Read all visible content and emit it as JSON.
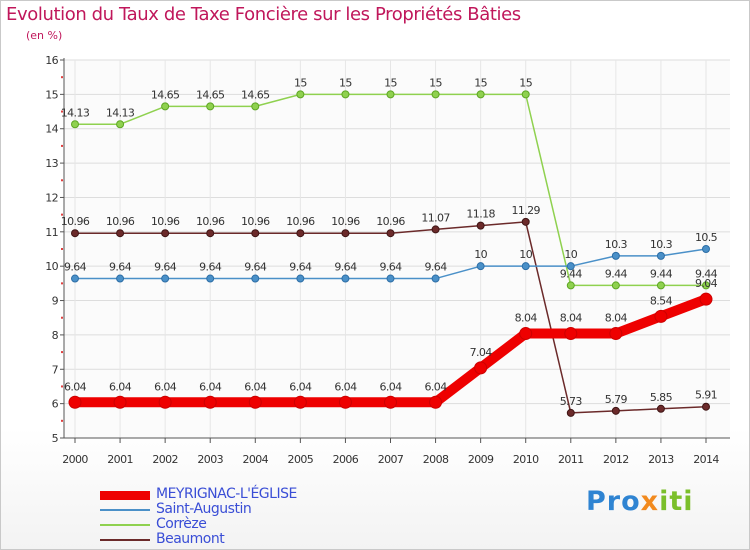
{
  "title": "Evolution du Taux de Taxe Foncière sur les Propriétés Bâties",
  "unit_label": "(en %)",
  "brand": {
    "part1": "Pro",
    "part2": "x",
    "part3": "iti"
  },
  "chart_data": {
    "type": "line",
    "title": "Evolution du Taux de Taxe Foncière sur les Propriétés Bâties",
    "ylabel": "(en %)",
    "xlabel": "",
    "ylim": [
      5,
      16
    ],
    "yticks": [
      5,
      6,
      7,
      8,
      9,
      10,
      11,
      12,
      13,
      14,
      15,
      16
    ],
    "categories": [
      "2000",
      "2001",
      "2002",
      "2003",
      "2004",
      "2005",
      "2006",
      "2007",
      "2008",
      "2009",
      "2010",
      "2011",
      "2012",
      "2013",
      "2014"
    ],
    "series": [
      {
        "name": "MEYRIGNAC-L'ÉGLISE",
        "color": "#ee0000",
        "values": [
          6.04,
          6.04,
          6.04,
          6.04,
          6.04,
          6.04,
          6.04,
          6.04,
          6.04,
          7.04,
          8.04,
          8.04,
          8.04,
          8.54,
          9.04
        ],
        "labels": [
          "6.04",
          "6.04",
          "6.04",
          "6.04",
          "6.04",
          "6.04",
          "6.04",
          "6.04",
          "6.04",
          "7.04",
          "8.04",
          "8.04",
          "8.04",
          "8.54",
          "9.04"
        ]
      },
      {
        "name": "Saint-Augustin",
        "color": "#4a90c8",
        "values": [
          9.64,
          9.64,
          9.64,
          9.64,
          9.64,
          9.64,
          9.64,
          9.64,
          9.64,
          10,
          10,
          10,
          10.3,
          10.3,
          10.5
        ],
        "labels": [
          "9.64",
          "9.64",
          "9.64",
          "9.64",
          "9.64",
          "9.64",
          "9.64",
          "9.64",
          "9.64",
          "10",
          "10",
          "10",
          "10.3",
          "10.3",
          "10.5"
        ]
      },
      {
        "name": "Corrèze",
        "color": "#8fd14f",
        "values": [
          14.13,
          14.13,
          14.65,
          14.65,
          14.65,
          15,
          15,
          15,
          15,
          15,
          15,
          9.44,
          9.44,
          9.44,
          9.44
        ],
        "labels": [
          "14.13",
          "14.13",
          "14.65",
          "14.65",
          "14.65",
          "15",
          "15",
          "15",
          "15",
          "15",
          "15",
          "9.44",
          "9.44",
          "9.44",
          "9.44"
        ]
      },
      {
        "name": "Beaumont",
        "color": "#6b2a2a",
        "values": [
          10.96,
          10.96,
          10.96,
          10.96,
          10.96,
          10.96,
          10.96,
          10.96,
          11.07,
          11.18,
          11.29,
          5.73,
          5.79,
          5.85,
          5.91
        ],
        "labels": [
          "10.96",
          "10.96",
          "10.96",
          "10.96",
          "10.96",
          "10.96",
          "10.96",
          "10.96",
          "11.07",
          "11.18",
          "11.29",
          "5.73",
          "5.79",
          "5.85",
          "5.91"
        ]
      }
    ]
  }
}
